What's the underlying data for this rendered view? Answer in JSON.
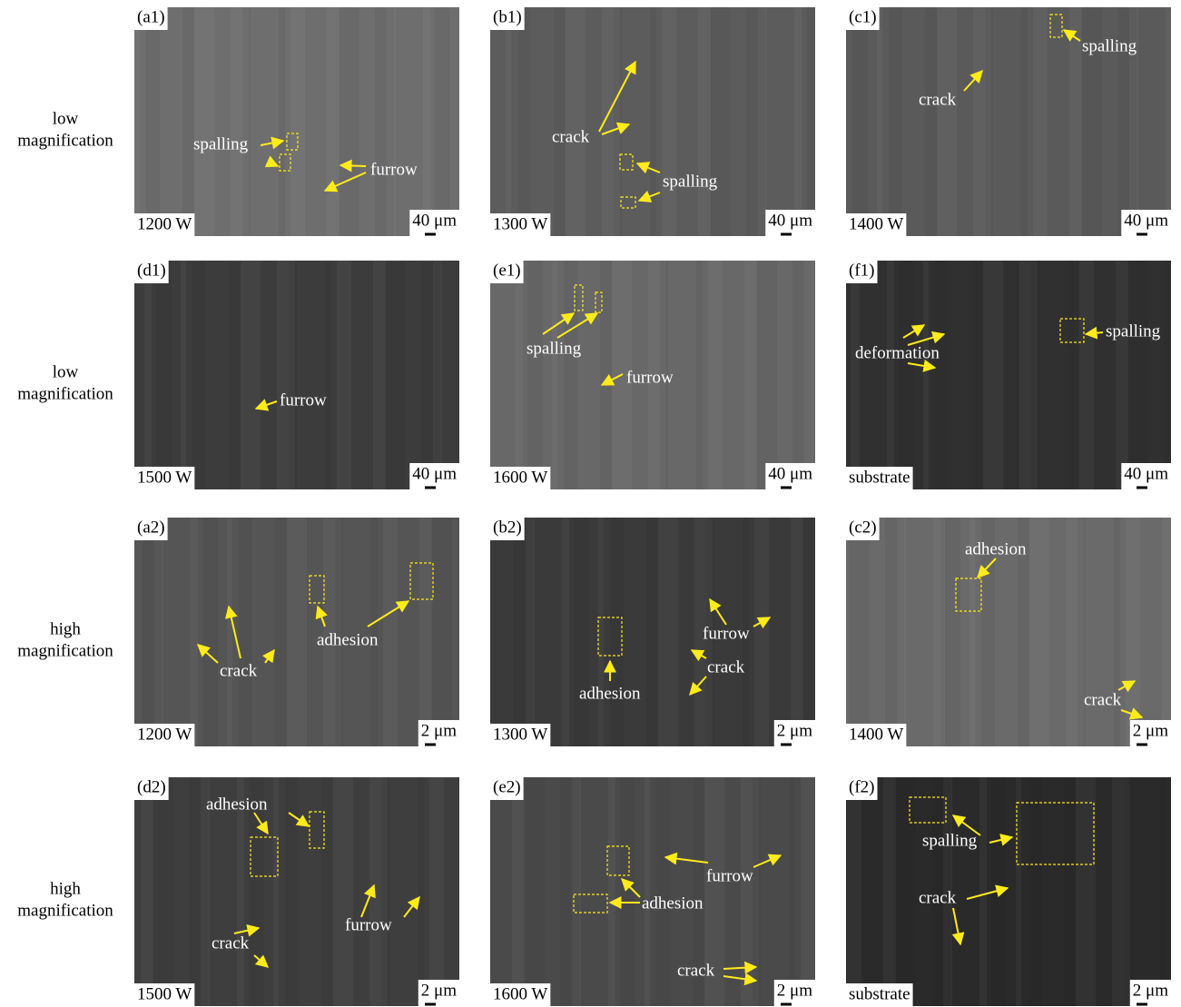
{
  "row_labels": [
    [
      "low",
      "magnification"
    ],
    [
      "low",
      "magnification"
    ],
    [
      "high",
      "magnification"
    ],
    [
      "high",
      "magnification"
    ]
  ],
  "panels": [
    {
      "label": "(a1)",
      "condition": "1200 W",
      "scale": "40 μm",
      "annotations": [
        "spalling",
        "furrow"
      ]
    },
    {
      "label": "(b1)",
      "condition": "1300 W",
      "scale": "40 μm",
      "annotations": [
        "crack",
        "spalling"
      ]
    },
    {
      "label": "(c1)",
      "condition": "1400 W",
      "scale": "40 μm",
      "annotations": [
        "spalling",
        "crack"
      ]
    },
    {
      "label": "(d1)",
      "condition": "1500 W",
      "scale": "40 μm",
      "annotations": [
        "furrow"
      ]
    },
    {
      "label": "(e1)",
      "condition": "1600 W",
      "scale": "40 μm",
      "annotations": [
        "spalling",
        "furrow"
      ]
    },
    {
      "label": "(f1)",
      "condition": "substrate",
      "scale": "40 μm",
      "annotations": [
        "deformation",
        "spalling"
      ]
    },
    {
      "label": "(a2)",
      "condition": "1200 W",
      "scale": "2 μm",
      "annotations": [
        "adhesion",
        "crack"
      ]
    },
    {
      "label": "(b2)",
      "condition": "1300 W",
      "scale": "2 μm",
      "annotations": [
        "furrow",
        "crack",
        "adhesion"
      ]
    },
    {
      "label": "(c2)",
      "condition": "1400 W",
      "scale": "2 μm",
      "annotations": [
        "adhesion",
        "crack"
      ]
    },
    {
      "label": "(d2)",
      "condition": "1500 W",
      "scale": "2 μm",
      "annotations": [
        "adhesion",
        "furrow",
        "crack"
      ]
    },
    {
      "label": "(e2)",
      "condition": "1600 W",
      "scale": "2 μm",
      "annotations": [
        "furrow",
        "adhesion",
        "crack"
      ]
    },
    {
      "label": "(f2)",
      "condition": "substrate",
      "scale": "2 μm",
      "annotations": [
        "spalling",
        "crack"
      ]
    }
  ]
}
